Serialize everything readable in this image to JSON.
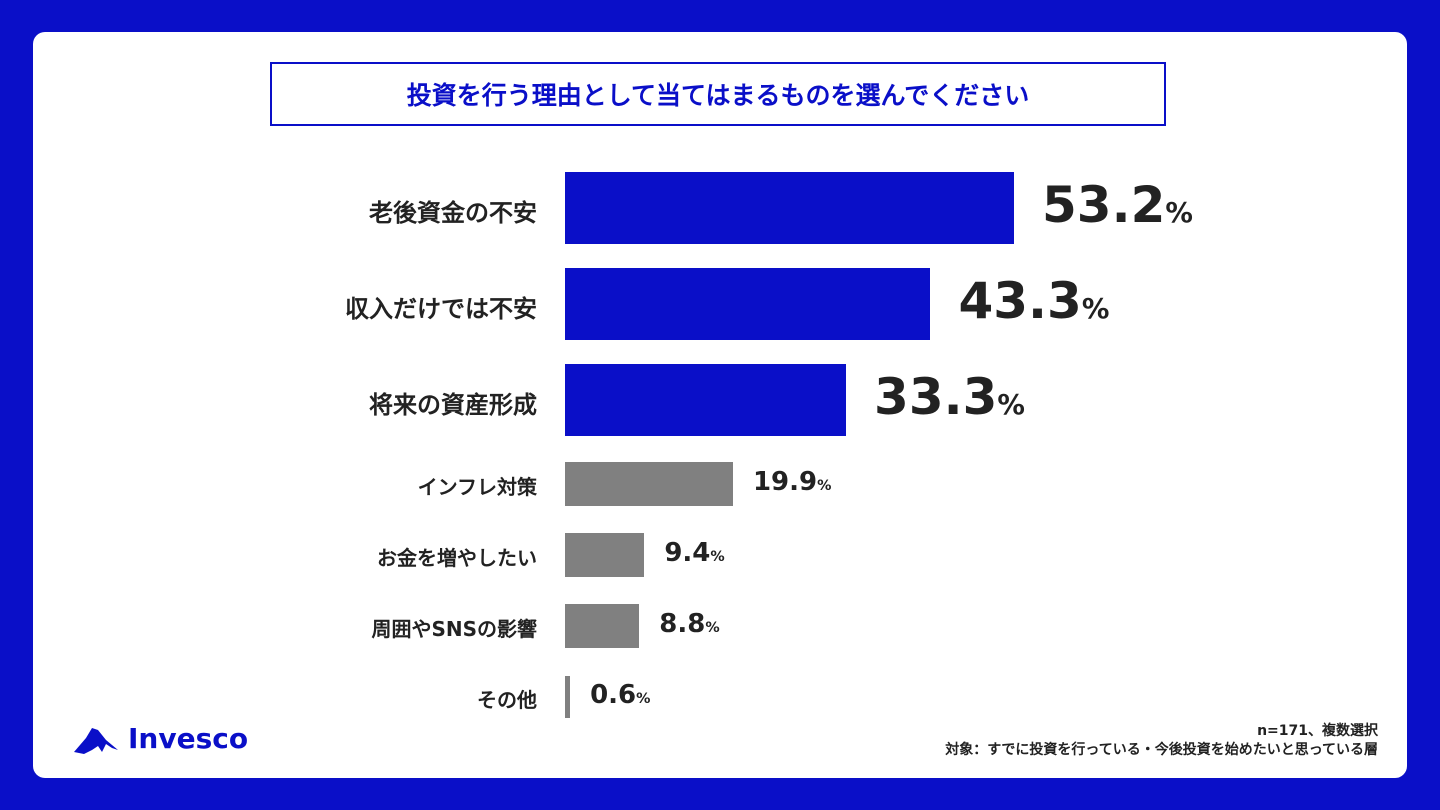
{
  "chart_data": {
    "type": "bar",
    "orientation": "horizontal",
    "title": "投資を行う理由として当てはまるものを選んでください",
    "categories": [
      "老後資金の不安",
      "収入だけでは不安",
      "将来の資産形成",
      "インフレ対策",
      "お金を増やしたい",
      "周囲やSNSの影響",
      "その他"
    ],
    "values": [
      53.2,
      43.3,
      33.3,
      19.9,
      9.4,
      8.8,
      0.6
    ],
    "value_labels": [
      "53.2",
      "43.3",
      "33.3",
      "19.9",
      "9.4",
      "8.8",
      "0.6"
    ],
    "unit": "%",
    "highlight_count": 3,
    "colors": {
      "highlight": "#0a0fc8",
      "other": "#808080"
    },
    "grid": false
  },
  "brand": {
    "logo_text": "Invesco",
    "color": "#0a0fc8"
  },
  "notes": {
    "line1": "n=171、複数選択",
    "line2": "対象：すでに投資を行っている・今後投資を始めたいと思っている層"
  }
}
